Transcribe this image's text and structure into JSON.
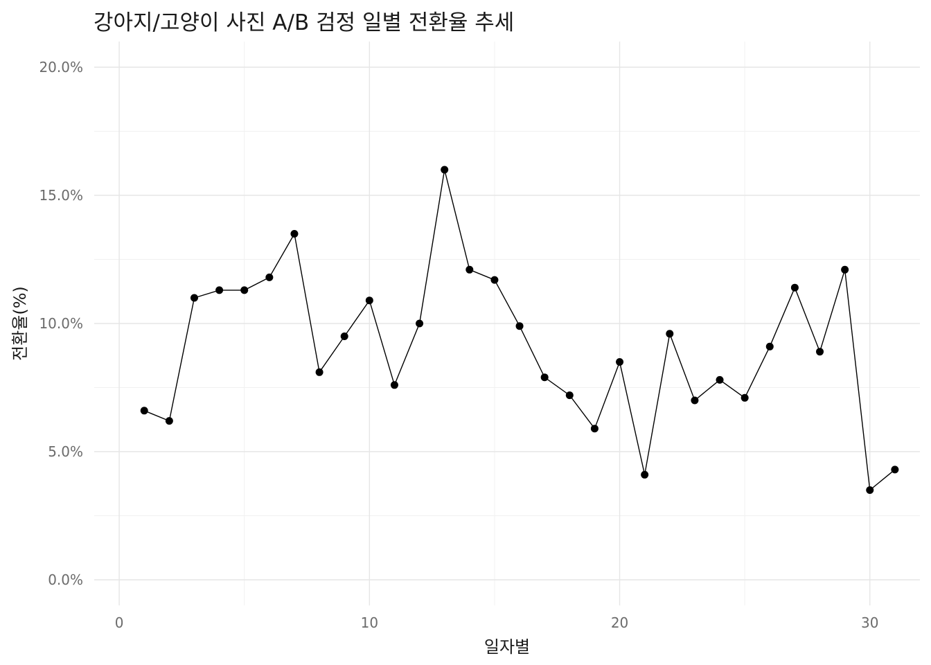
{
  "chart_data": {
    "type": "line",
    "title": "강아지/고양이 사진 A/B 검정 일별 전환율 추세",
    "xlabel": "일자별",
    "ylabel": "전환율(%)",
    "xlim": [
      -1,
      32
    ],
    "ylim": [
      -0.01,
      0.21
    ],
    "x_ticks": [
      0,
      10,
      20,
      30
    ],
    "x_tick_labels": [
      "0",
      "10",
      "20",
      "30"
    ],
    "y_ticks": [
      0,
      0.05,
      0.1,
      0.15,
      0.2
    ],
    "y_tick_labels": [
      "0.0%",
      "5.0%",
      "10.0%",
      "15.0%",
      "20.0%"
    ],
    "grid": true,
    "series": [
      {
        "x": [
          1,
          2,
          3,
          4,
          5,
          6,
          7,
          8,
          9,
          10,
          11,
          12,
          13,
          14,
          15,
          16,
          17,
          18,
          19,
          20,
          21,
          22,
          23,
          24,
          25,
          26,
          27,
          28,
          29,
          30,
          31
        ],
        "values": [
          0.066,
          0.062,
          0.11,
          0.113,
          0.113,
          0.118,
          0.135,
          0.081,
          0.095,
          0.109,
          0.076,
          0.1,
          0.16,
          0.121,
          0.117,
          0.099,
          0.079,
          0.072,
          0.059,
          0.085,
          0.041,
          0.096,
          0.07,
          0.078,
          0.071,
          0.091,
          0.114,
          0.089,
          0.121,
          0.035,
          0.043
        ]
      }
    ]
  }
}
